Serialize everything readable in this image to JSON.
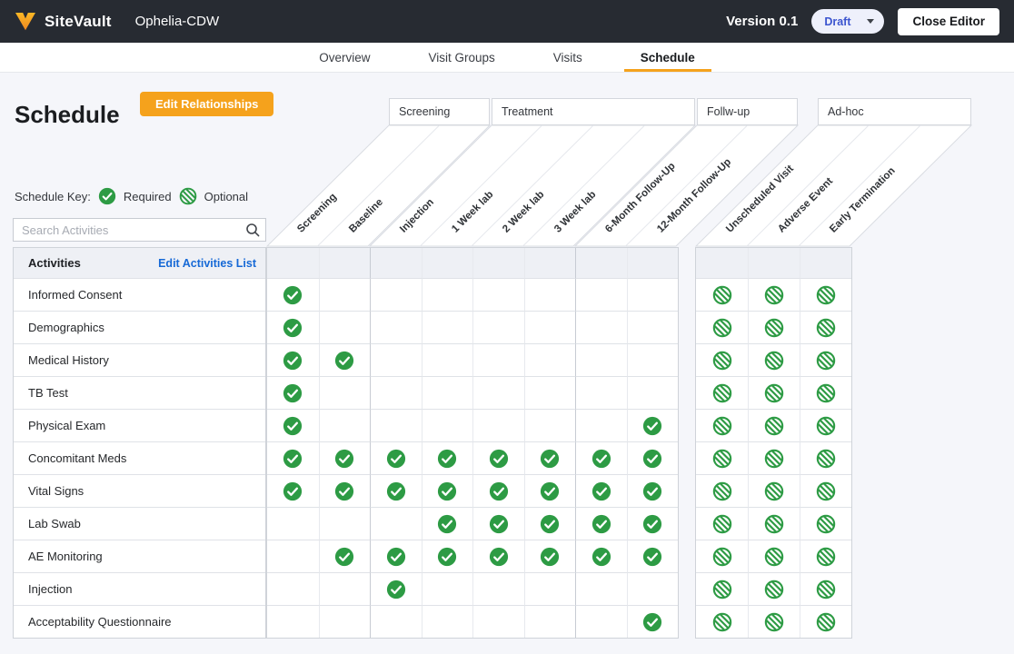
{
  "topbar": {
    "brand": "SiteVault",
    "study_name": "Ophelia-CDW",
    "version_label": "Version 0.1",
    "status_value": "Draft",
    "close_button": "Close Editor"
  },
  "tabs": {
    "items": [
      {
        "label": "Overview",
        "active": false
      },
      {
        "label": "Visit Groups",
        "active": false
      },
      {
        "label": "Visits",
        "active": false
      },
      {
        "label": "Schedule",
        "active": true
      }
    ]
  },
  "page": {
    "title": "Schedule",
    "edit_relationships_button": "Edit Relationships"
  },
  "schedule_key": {
    "label": "Schedule Key:",
    "required_label": "Required",
    "optional_label": "Optional"
  },
  "search": {
    "placeholder": "Search Activities"
  },
  "matrix": {
    "activities_header": "Activities",
    "edit_activities_link": "Edit Activities List",
    "visit_groups": [
      {
        "label": "Screening",
        "grid": "main",
        "visits": [
          "Screening",
          "Baseline"
        ]
      },
      {
        "label": "Treatment",
        "grid": "main",
        "visits": [
          "Injection",
          "1 Week lab",
          "2 Week lab",
          "3 Week lab"
        ]
      },
      {
        "label": "Follw-up",
        "grid": "main",
        "visits": [
          "6-Month Follow-Up",
          "12-Month Follow-Up"
        ]
      },
      {
        "label": "Ad-hoc",
        "grid": "adhoc",
        "visits": [
          "Unscheduled Visit",
          "Adverse Event",
          "Early Termination"
        ]
      }
    ],
    "rows": [
      {
        "activity": "Informed Consent",
        "main": [
          "required",
          "",
          "",
          "",
          "",
          "",
          "",
          ""
        ],
        "adhoc": [
          "optional",
          "optional",
          "optional"
        ]
      },
      {
        "activity": "Demographics",
        "main": [
          "required",
          "",
          "",
          "",
          "",
          "",
          "",
          ""
        ],
        "adhoc": [
          "optional",
          "optional",
          "optional"
        ]
      },
      {
        "activity": "Medical History",
        "main": [
          "required",
          "required",
          "",
          "",
          "",
          "",
          "",
          ""
        ],
        "adhoc": [
          "optional",
          "optional",
          "optional"
        ]
      },
      {
        "activity": "TB Test",
        "main": [
          "required",
          "",
          "",
          "",
          "",
          "",
          "",
          ""
        ],
        "adhoc": [
          "optional",
          "optional",
          "optional"
        ]
      },
      {
        "activity": "Physical Exam",
        "main": [
          "required",
          "",
          "",
          "",
          "",
          "",
          "",
          "required"
        ],
        "adhoc": [
          "optional",
          "optional",
          "optional"
        ]
      },
      {
        "activity": "Concomitant Meds",
        "main": [
          "required",
          "required",
          "required",
          "required",
          "required",
          "required",
          "required",
          "required"
        ],
        "adhoc": [
          "optional",
          "optional",
          "optional"
        ]
      },
      {
        "activity": "Vital Signs",
        "main": [
          "required",
          "required",
          "required",
          "required",
          "required",
          "required",
          "required",
          "required"
        ],
        "adhoc": [
          "optional",
          "optional",
          "optional"
        ]
      },
      {
        "activity": "Lab Swab",
        "main": [
          "",
          "",
          "",
          "required",
          "required",
          "required",
          "required",
          "required"
        ],
        "adhoc": [
          "optional",
          "optional",
          "optional"
        ]
      },
      {
        "activity": "AE Monitoring",
        "main": [
          "",
          "required",
          "required",
          "required",
          "required",
          "required",
          "required",
          "required"
        ],
        "adhoc": [
          "optional",
          "optional",
          "optional"
        ]
      },
      {
        "activity": "Injection",
        "main": [
          "",
          "",
          "required",
          "",
          "",
          "",
          "",
          ""
        ],
        "adhoc": [
          "optional",
          "optional",
          "optional"
        ]
      },
      {
        "activity": "Acceptability Questionnaire",
        "main": [
          "",
          "",
          "",
          "",
          "",
          "",
          "",
          "required"
        ],
        "adhoc": [
          "optional",
          "optional",
          "optional"
        ]
      }
    ]
  },
  "colors": {
    "topbar_bg": "#272b32",
    "accent_orange": "#f5a21c",
    "green": "#2d9b44",
    "link_blue": "#1669d6",
    "draft_text": "#3c55cf",
    "page_bg": "#f5f6fa"
  }
}
